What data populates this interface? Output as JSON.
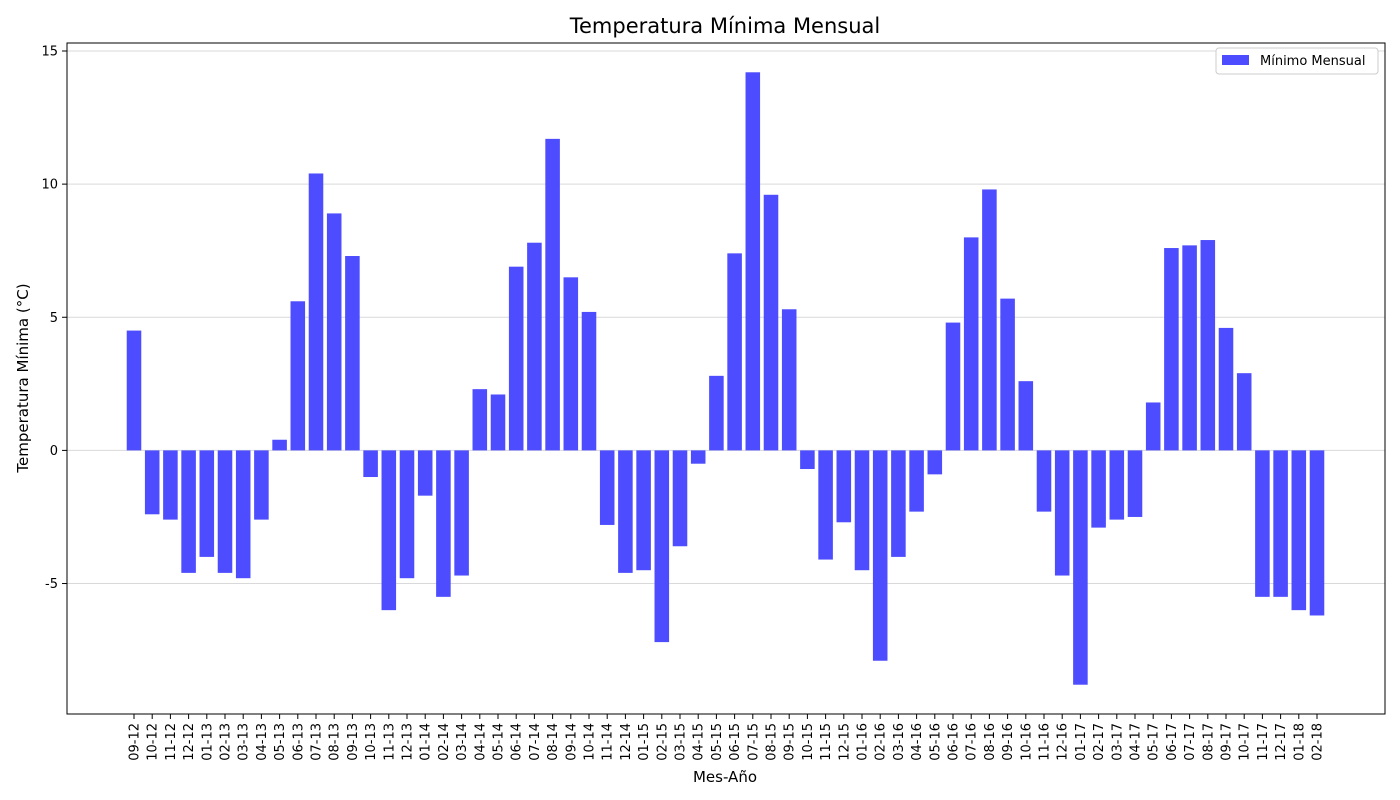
{
  "chart_data": {
    "type": "bar",
    "title": "Temperatura Mínima Mensual",
    "xlabel": "Mes-Año",
    "ylabel": "Temperatura Mínima (°C)",
    "ylim": [
      -9.9,
      15.3
    ],
    "yticks": [
      -5,
      0,
      5,
      10,
      15
    ],
    "grid": "horizontal",
    "legend_position": "top-right",
    "color": "#4d4dff",
    "categories": [
      "09-12",
      "10-12",
      "11-12",
      "12-12",
      "01-13",
      "02-13",
      "03-13",
      "04-13",
      "05-13",
      "06-13",
      "07-13",
      "08-13",
      "09-13",
      "10-13",
      "11-13",
      "12-13",
      "01-14",
      "02-14",
      "03-14",
      "04-14",
      "05-14",
      "06-14",
      "07-14",
      "08-14",
      "09-14",
      "10-14",
      "11-14",
      "12-14",
      "01-15",
      "02-15",
      "03-15",
      "04-15",
      "05-15",
      "06-15",
      "07-15",
      "08-15",
      "09-15",
      "10-15",
      "11-15",
      "12-15",
      "01-16",
      "02-16",
      "03-16",
      "04-16",
      "05-16",
      "06-16",
      "07-16",
      "08-16",
      "09-16",
      "10-16",
      "11-16",
      "12-16",
      "01-17",
      "02-17",
      "03-17",
      "04-17",
      "05-17",
      "06-17",
      "07-17",
      "08-17",
      "09-17",
      "10-17",
      "11-17",
      "12-17",
      "01-18",
      "02-18"
    ],
    "series": [
      {
        "name": "Mínimo Mensual",
        "values": [
          4.5,
          -2.4,
          -2.6,
          -4.6,
          -4.0,
          -4.6,
          -4.8,
          -2.6,
          0.4,
          5.6,
          10.4,
          8.9,
          7.3,
          -1.0,
          -6.0,
          -4.8,
          -1.7,
          -5.5,
          -4.7,
          2.3,
          2.1,
          6.9,
          7.8,
          11.7,
          6.5,
          5.2,
          -2.8,
          -4.6,
          -4.5,
          -7.2,
          -3.6,
          -0.5,
          2.8,
          7.4,
          14.2,
          9.6,
          5.3,
          -0.7,
          -4.1,
          -2.7,
          -4.5,
          -7.9,
          -4.0,
          -2.3,
          -0.9,
          4.8,
          8.0,
          9.8,
          5.7,
          2.6,
          -2.3,
          -4.7,
          -8.8,
          -2.9,
          -2.6,
          -2.5,
          1.8,
          7.6,
          7.7,
          7.9,
          4.6,
          2.9,
          -5.5,
          -5.5,
          -6.0,
          -6.2
        ]
      }
    ]
  }
}
